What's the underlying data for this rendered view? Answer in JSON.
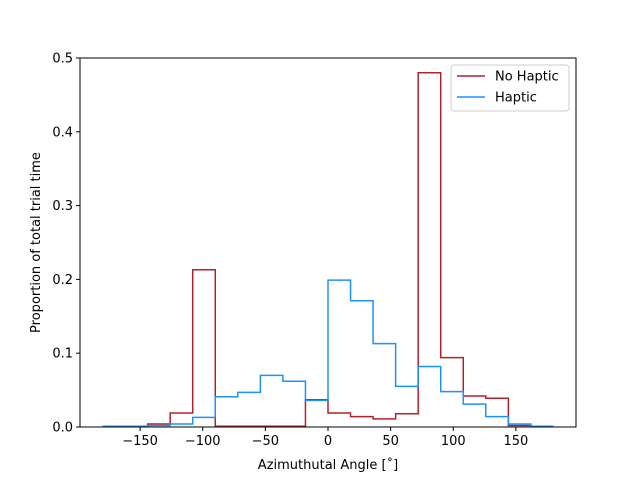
{
  "chart_data": {
    "type": "step-histogram",
    "title": "",
    "xlabel": "Azimuthutal Angle [$^{\\circ}$]",
    "xlabel_display": "Azimuthutal Angle [˚]",
    "ylabel": "Proportion of total trial time",
    "xlim": [
      -198,
      198
    ],
    "ylim": [
      0,
      0.5
    ],
    "xticks": [
      -150,
      -100,
      -50,
      0,
      50,
      100,
      150
    ],
    "xtick_labels": [
      "−150",
      "−100",
      "−50",
      "0",
      "50",
      "100",
      "150"
    ],
    "yticks": [
      0.0,
      0.1,
      0.2,
      0.3,
      0.4,
      0.5
    ],
    "ytick_labels": [
      "0.0",
      "0.1",
      "0.2",
      "0.3",
      "0.4",
      "0.5"
    ],
    "grid": false,
    "legend_position": "top-right",
    "series": [
      {
        "name": "No Haptic",
        "color": "#b2222b",
        "bin_edges": [
          -180,
          -162,
          -144,
          -126,
          -108,
          -90,
          -72,
          -54,
          -36,
          -18,
          0,
          18,
          36,
          54,
          72,
          90,
          108,
          126,
          144,
          162,
          180
        ],
        "values": [
          0.001,
          0.001,
          0.004,
          0.019,
          0.213,
          0.001,
          0.001,
          0.001,
          0.001,
          0.037,
          0.019,
          0.014,
          0.011,
          0.018,
          0.48,
          0.094,
          0.042,
          0.039,
          0.002,
          0.001
        ]
      },
      {
        "name": "Haptic",
        "color": "#1e90ff",
        "bin_edges": [
          -180,
          -162,
          -144,
          -126,
          -108,
          -90,
          -72,
          -54,
          -36,
          -18,
          0,
          18,
          36,
          54,
          72,
          90,
          108,
          126,
          144,
          162,
          180
        ],
        "values": [
          0.001,
          0.001,
          0.002,
          0.004,
          0.013,
          0.041,
          0.047,
          0.07,
          0.062,
          0.036,
          0.199,
          0.171,
          0.113,
          0.055,
          0.082,
          0.048,
          0.031,
          0.014,
          0.004,
          0.001
        ]
      }
    ]
  }
}
